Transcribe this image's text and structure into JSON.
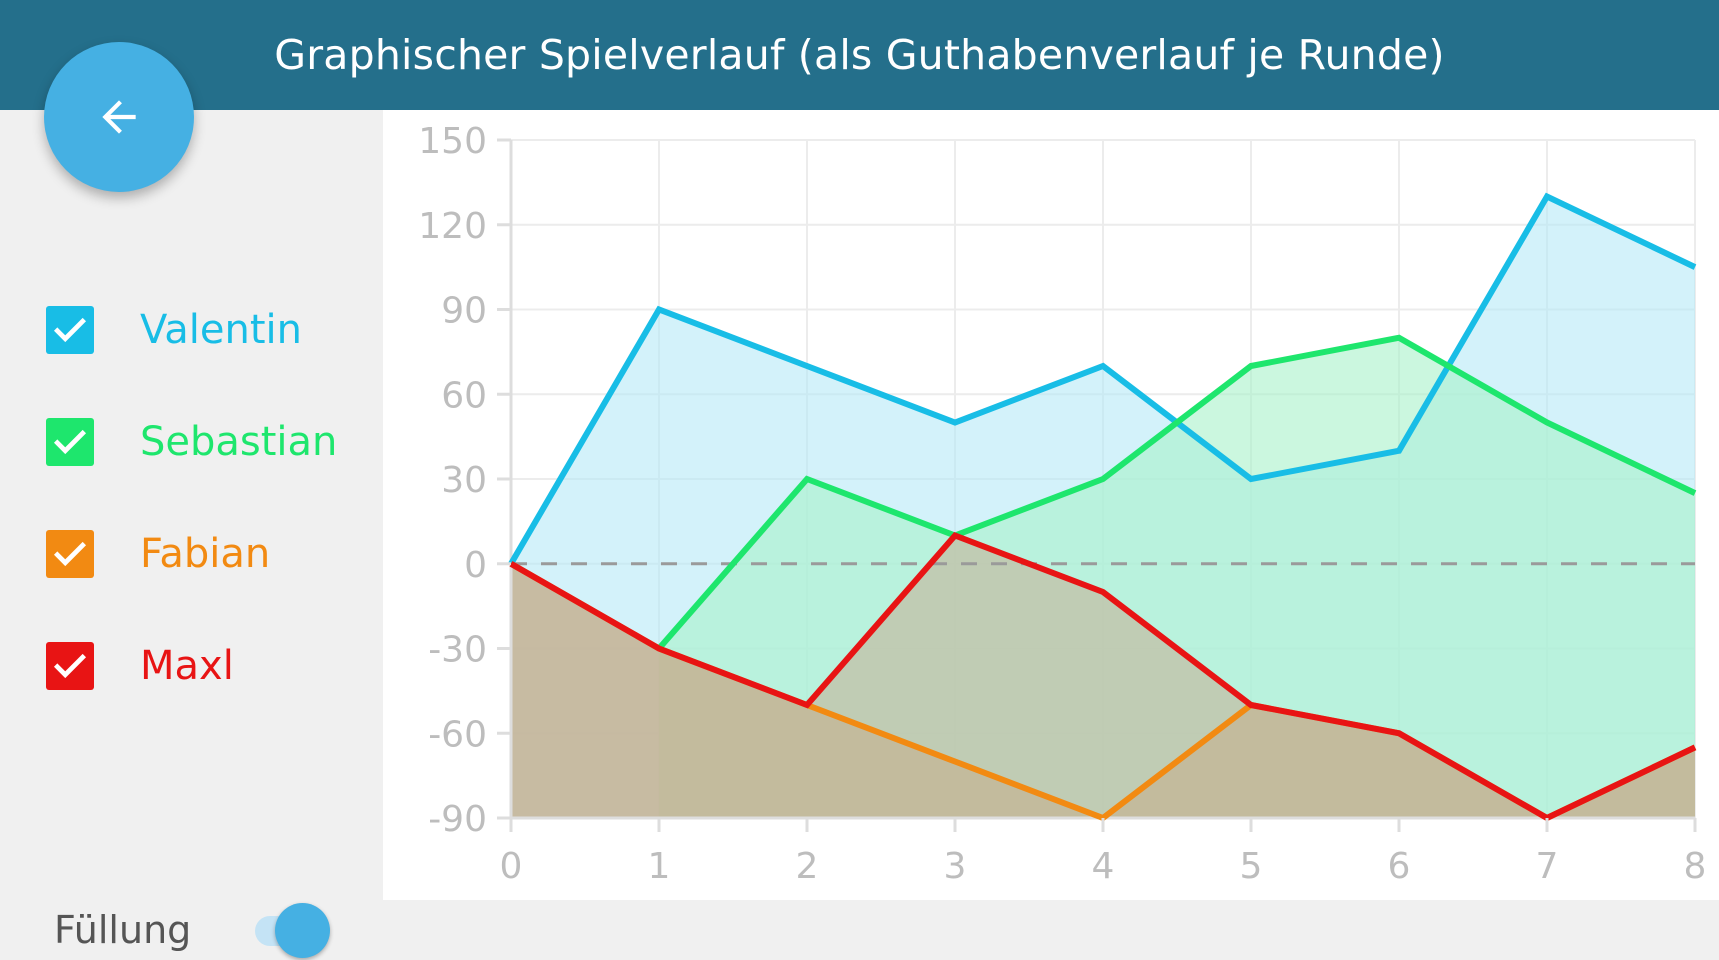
{
  "header": {
    "title": "Graphischer Spielverlauf (als Guthabenverlauf je Runde)"
  },
  "back_button": {
    "icon": "arrow-left-icon"
  },
  "legend": {
    "items": [
      {
        "label": "Valentin",
        "color": "#18bde6",
        "checked": true
      },
      {
        "label": "Sebastian",
        "color": "#1ee66d",
        "checked": true
      },
      {
        "label": "Fabian",
        "color": "#f28a12",
        "checked": true
      },
      {
        "label": "Maxl",
        "color": "#e81414",
        "checked": true
      }
    ]
  },
  "fill_toggle": {
    "label": "Füllung",
    "on": true
  },
  "chart_data": {
    "type": "area",
    "x": [
      0,
      1,
      2,
      3,
      4,
      5,
      6,
      7,
      8
    ],
    "xlim": [
      0,
      8
    ],
    "ylim": [
      -90,
      150
    ],
    "y_ticks": [
      150,
      120,
      90,
      60,
      30,
      0,
      -30,
      -60,
      -90
    ],
    "x_ticks": [
      0,
      1,
      2,
      3,
      4,
      5,
      6,
      7,
      8
    ],
    "grid": true,
    "fill": true,
    "baseline": 0,
    "series": [
      {
        "name": "Valentin",
        "color": "#18bde6",
        "fill_color": "#b6e9f7",
        "values": [
          0,
          90,
          70,
          50,
          70,
          30,
          40,
          130,
          105
        ]
      },
      {
        "name": "Sebastian",
        "color": "#1ee66d",
        "fill_color": "#a9f2c9",
        "values": [
          null,
          -30,
          30,
          10,
          30,
          70,
          80,
          50,
          25
        ]
      },
      {
        "name": "Fabian",
        "color": "#f28a12",
        "fill_color": "#c7ab7e",
        "values": [
          0,
          -30,
          -50,
          -70,
          -90,
          -50,
          -60,
          -90,
          -65
        ]
      },
      {
        "name": "Maxl",
        "color": "#e81414",
        "fill_color": "#c4b29a",
        "values": [
          0,
          -30,
          -50,
          10,
          -10,
          -50,
          -60,
          -90,
          -65
        ]
      }
    ]
  }
}
